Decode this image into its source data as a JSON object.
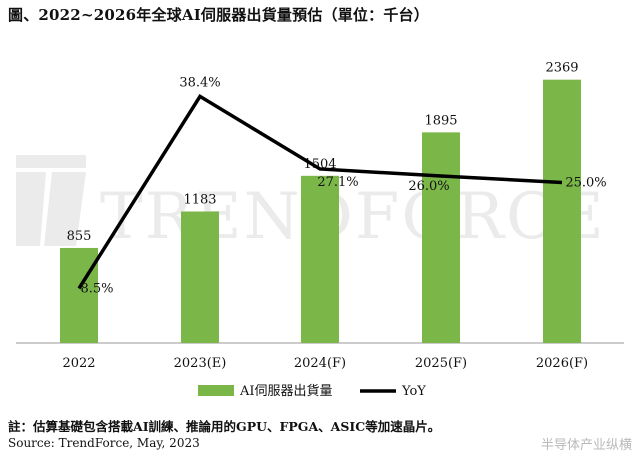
{
  "title": "圖、2022~2026年全球AI伺服器出貨量預估（單位：千台）",
  "chart_data": {
    "type": "bar",
    "categories": [
      "2022",
      "2023(E)",
      "2024(F)",
      "2025(F)",
      "2026(F)"
    ],
    "values": [
      855,
      1183,
      1504,
      1895,
      2369
    ],
    "value_labels": [
      "855",
      "1183",
      "1504",
      "1895",
      "2369"
    ],
    "series": [
      {
        "name": "AI伺服器出貨量",
        "kind": "bar",
        "values": [
          855,
          1183,
          1504,
          1895,
          2369
        ],
        "color": "#7ab648"
      },
      {
        "name": "YoY",
        "kind": "line",
        "values": [
          8.5,
          38.4,
          27.1,
          26.0,
          25.0
        ],
        "labels": [
          "8.5%",
          "38.4%",
          "27.1%",
          "26.0%",
          "25.0%"
        ],
        "color": "#000000"
      }
    ],
    "ylim": [
      0,
      2600
    ],
    "y2lim": [
      0,
      45
    ],
    "legend": "bottom-center",
    "grid": false
  },
  "watermark": "TRENDFORCE",
  "note": "註：估算基礎包含搭載AI訓練、推論用的GPU、FPGA、ASIC等加速晶片。",
  "source": "Source: TrendForce, May, 2023",
  "credit": "半导体产业纵横"
}
